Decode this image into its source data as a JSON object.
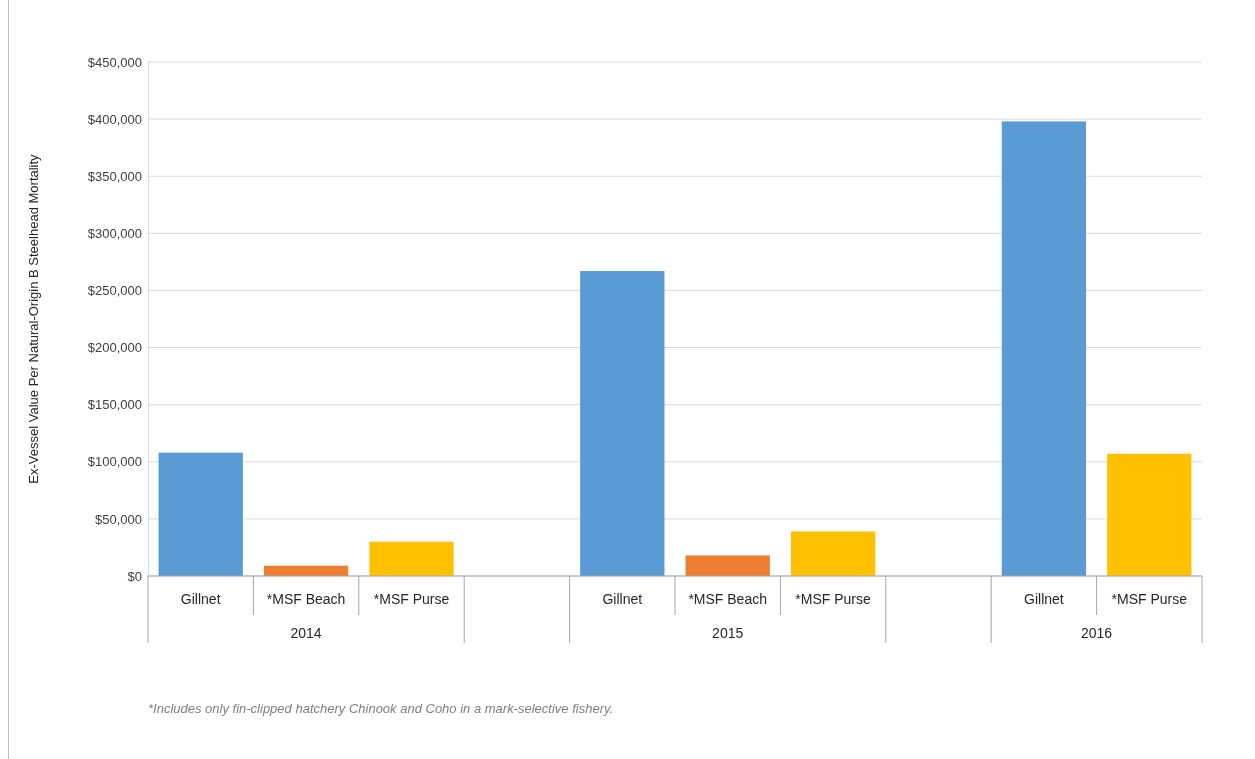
{
  "chart_data": {
    "type": "bar",
    "ylabel": "Ex-Vessel Value Per Natural-Origin B Steelhead Mortality",
    "categories": [
      "Gillnet",
      "*MSF Beach",
      "*MSF Purse",
      null,
      "Gillnet",
      "*MSF Beach",
      "*MSF Purse",
      null,
      "Gillnet",
      "*MSF Purse"
    ],
    "values": [
      108000,
      9000,
      30000,
      null,
      267000,
      18000,
      39000,
      null,
      398000,
      107000
    ],
    "colors": [
      "#5b9bd5",
      "#ed7d31",
      "#ffc000",
      null,
      "#5b9bd5",
      "#ed7d31",
      "#ffc000",
      null,
      "#5b9bd5",
      "#ffc000"
    ],
    "ylim": [
      0,
      450000
    ],
    "yticks": [
      {
        "value": 0,
        "label": "$0"
      },
      {
        "value": 50000,
        "label": "$50,000"
      },
      {
        "value": 100000,
        "label": "$100,000"
      },
      {
        "value": 150000,
        "label": "$150,000"
      },
      {
        "value": 200000,
        "label": "$200,000"
      },
      {
        "value": 250000,
        "label": "$250,000"
      },
      {
        "value": 300000,
        "label": "$300,000"
      },
      {
        "value": 350000,
        "label": "$350,000"
      },
      {
        "value": 400000,
        "label": "$400,000"
      },
      {
        "value": 450000,
        "label": "$450,000"
      }
    ],
    "grid": "y",
    "annotations": [
      "2014",
      "2015",
      "2016",
      "*Includes only fin-clipped hatchery Chinook and Coho in a mark-selective fishery."
    ]
  }
}
